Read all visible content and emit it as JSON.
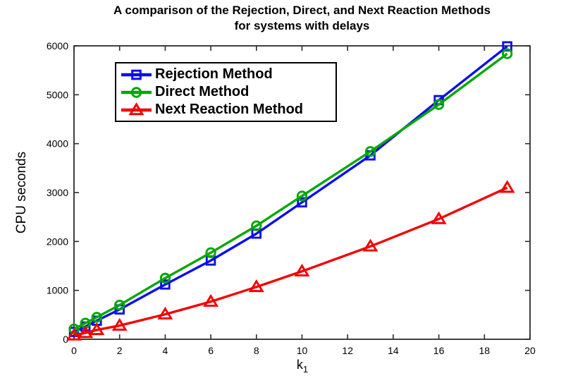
{
  "chart_data": {
    "type": "line",
    "title_line1": "A comparison of the Rejection, Direct, and Next Reaction Methods",
    "title_line2": "for systems with delays",
    "ylabel": "CPU seconds",
    "xlabel_base": "k",
    "xlabel_sub": "1",
    "xlim": [
      0,
      20
    ],
    "ylim": [
      0,
      6000
    ],
    "x_ticks": [
      0,
      2,
      4,
      6,
      8,
      10,
      12,
      14,
      16,
      18,
      20
    ],
    "y_ticks": [
      0,
      1000,
      2000,
      3000,
      4000,
      5000,
      6000
    ],
    "grid": false,
    "legend_position": "upper-left",
    "background": "#ffffff",
    "axis_color": "#2b2b2b",
    "x": [
      0,
      0.5,
      1,
      2,
      4,
      6,
      8,
      10,
      13,
      16,
      19
    ],
    "series": [
      {
        "name": "Rejection Method",
        "color": "#0d0dee",
        "marker": "square",
        "values": [
          150,
          260,
          380,
          610,
          1120,
          1610,
          2160,
          2800,
          3760,
          4890,
          5990
        ]
      },
      {
        "name": "Direct Method",
        "color": "#00a800",
        "marker": "circle",
        "values": [
          210,
          330,
          450,
          700,
          1250,
          1770,
          2320,
          2930,
          3840,
          4800,
          5840
        ]
      },
      {
        "name": "Next Reaction Method",
        "color": "#f40000",
        "marker": "triangle",
        "values": [
          80,
          130,
          190,
          280,
          510,
          770,
          1070,
          1390,
          1900,
          2460,
          3100
        ]
      }
    ]
  }
}
